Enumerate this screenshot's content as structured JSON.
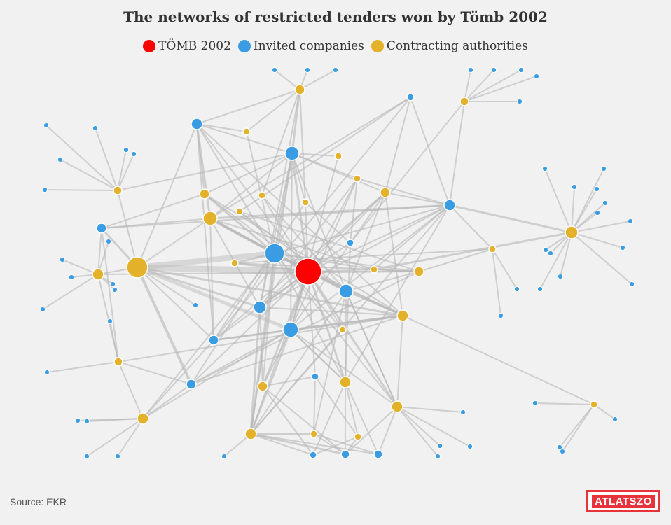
{
  "title": "The networks of restricted tenders won by Tömb 2002",
  "legend": [
    {
      "label": "TÖMB 2002",
      "color": "#ff0000"
    },
    {
      "label": "Invited companies",
      "color": "#3a9de3"
    },
    {
      "label": "Contracting authorities",
      "color": "#e4b12b"
    }
  ],
  "source": "Source: EKR",
  "logo": "ATLATSZO",
  "colors": {
    "tomb": "#ff0000",
    "company": "#3a9de3",
    "authority": "#e4b12b",
    "edge": "#b8b8b8"
  }
}
